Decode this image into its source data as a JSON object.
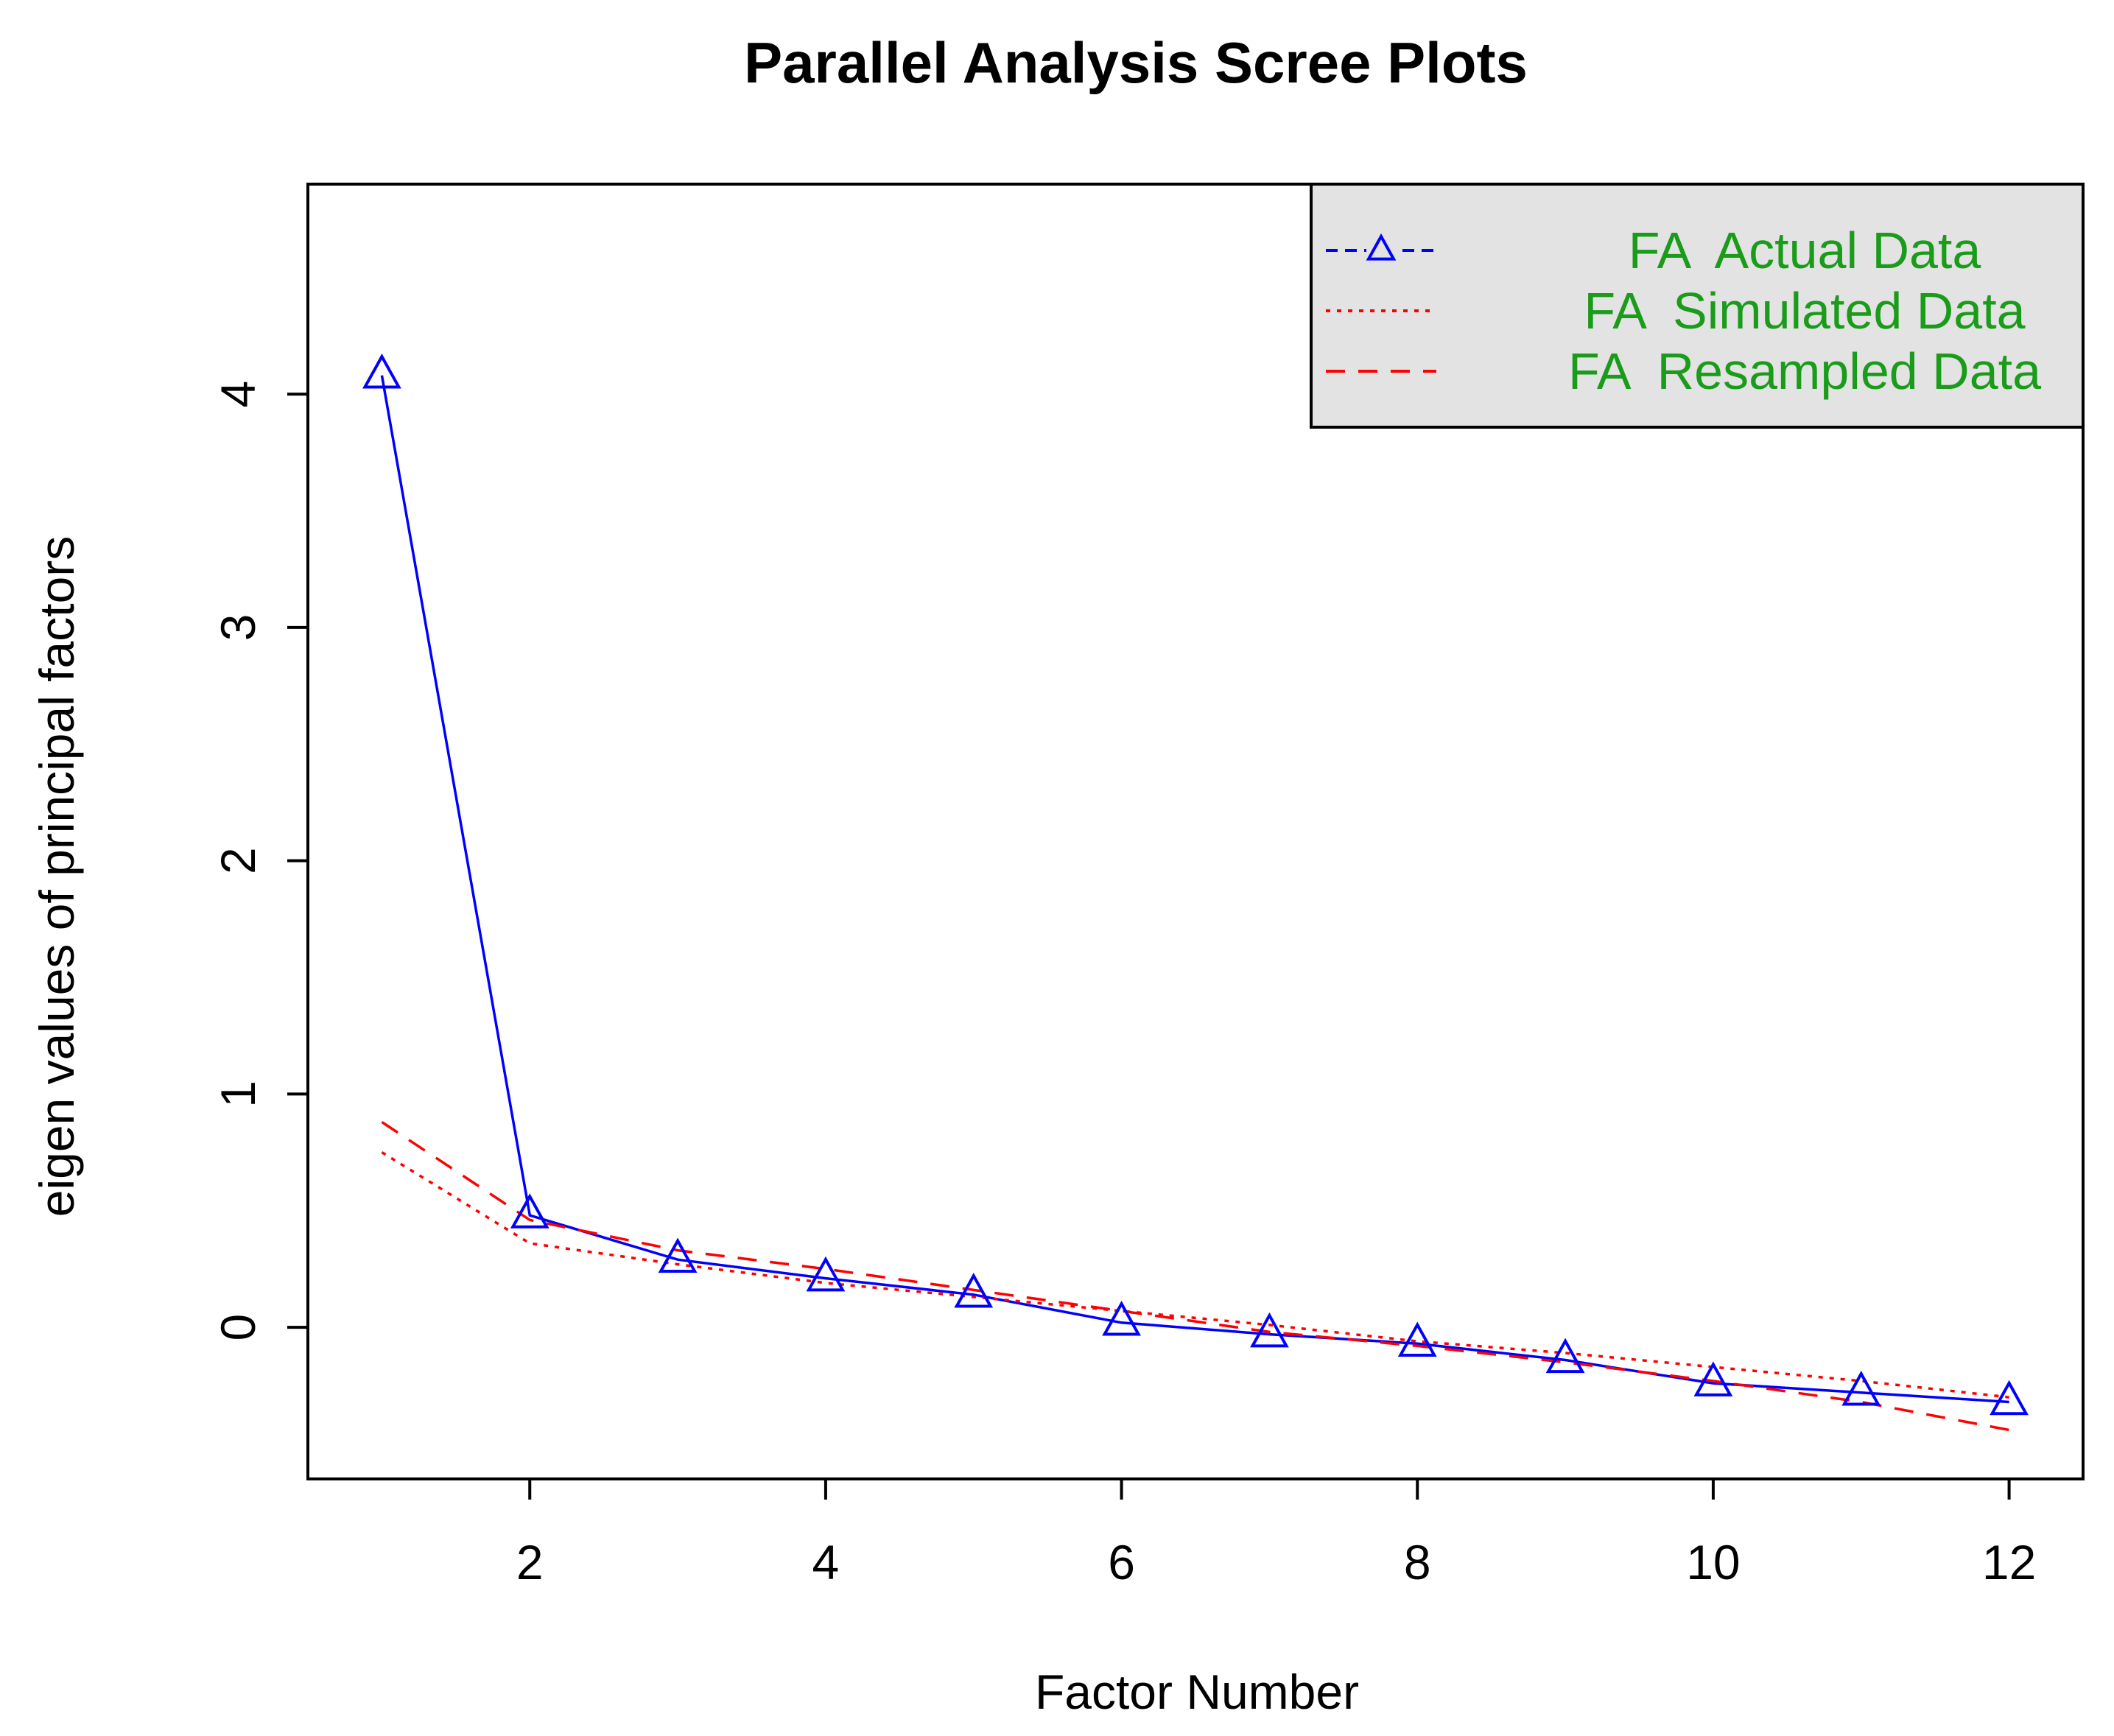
{
  "chart_data": {
    "type": "line",
    "title": "Parallel Analysis Scree Plots",
    "xlabel": "Factor Number",
    "ylabel": "eigen values of principal factors",
    "xlim": [
      0.5,
      12.5
    ],
    "ylim": [
      -0.65,
      4.9
    ],
    "x_ticks": [
      2,
      4,
      6,
      8,
      10,
      12
    ],
    "y_ticks": [
      0,
      1,
      2,
      3,
      4
    ],
    "x": [
      1,
      2,
      3,
      4,
      5,
      6,
      7,
      8,
      9,
      10,
      11,
      12
    ],
    "grid": false,
    "legend_position": "top-right",
    "legend_text_color": "#1a9c1a",
    "legend_background": "#e3e3e3",
    "series": [
      {
        "name": "FA  Actual Data",
        "color": "#0000ff",
        "line_style": "solid",
        "marker": "triangle",
        "values": [
          4.08,
          0.48,
          0.29,
          0.21,
          0.14,
          0.02,
          -0.03,
          -0.07,
          -0.14,
          -0.24,
          -0.28,
          -0.32
        ]
      },
      {
        "name": "FA  Simulated Data",
        "color": "#ff0000",
        "line_style": "dotted",
        "marker": "none",
        "values": [
          0.75,
          0.36,
          0.27,
          0.19,
          0.13,
          0.07,
          0.01,
          -0.06,
          -0.11,
          -0.17,
          -0.23,
          -0.3
        ]
      },
      {
        "name": "FA  Resampled Data",
        "color": "#ff0000",
        "line_style": "dashed",
        "marker": "none",
        "values": [
          0.88,
          0.46,
          0.33,
          0.25,
          0.16,
          0.07,
          -0.02,
          -0.08,
          -0.15,
          -0.23,
          -0.32,
          -0.44
        ]
      }
    ]
  }
}
